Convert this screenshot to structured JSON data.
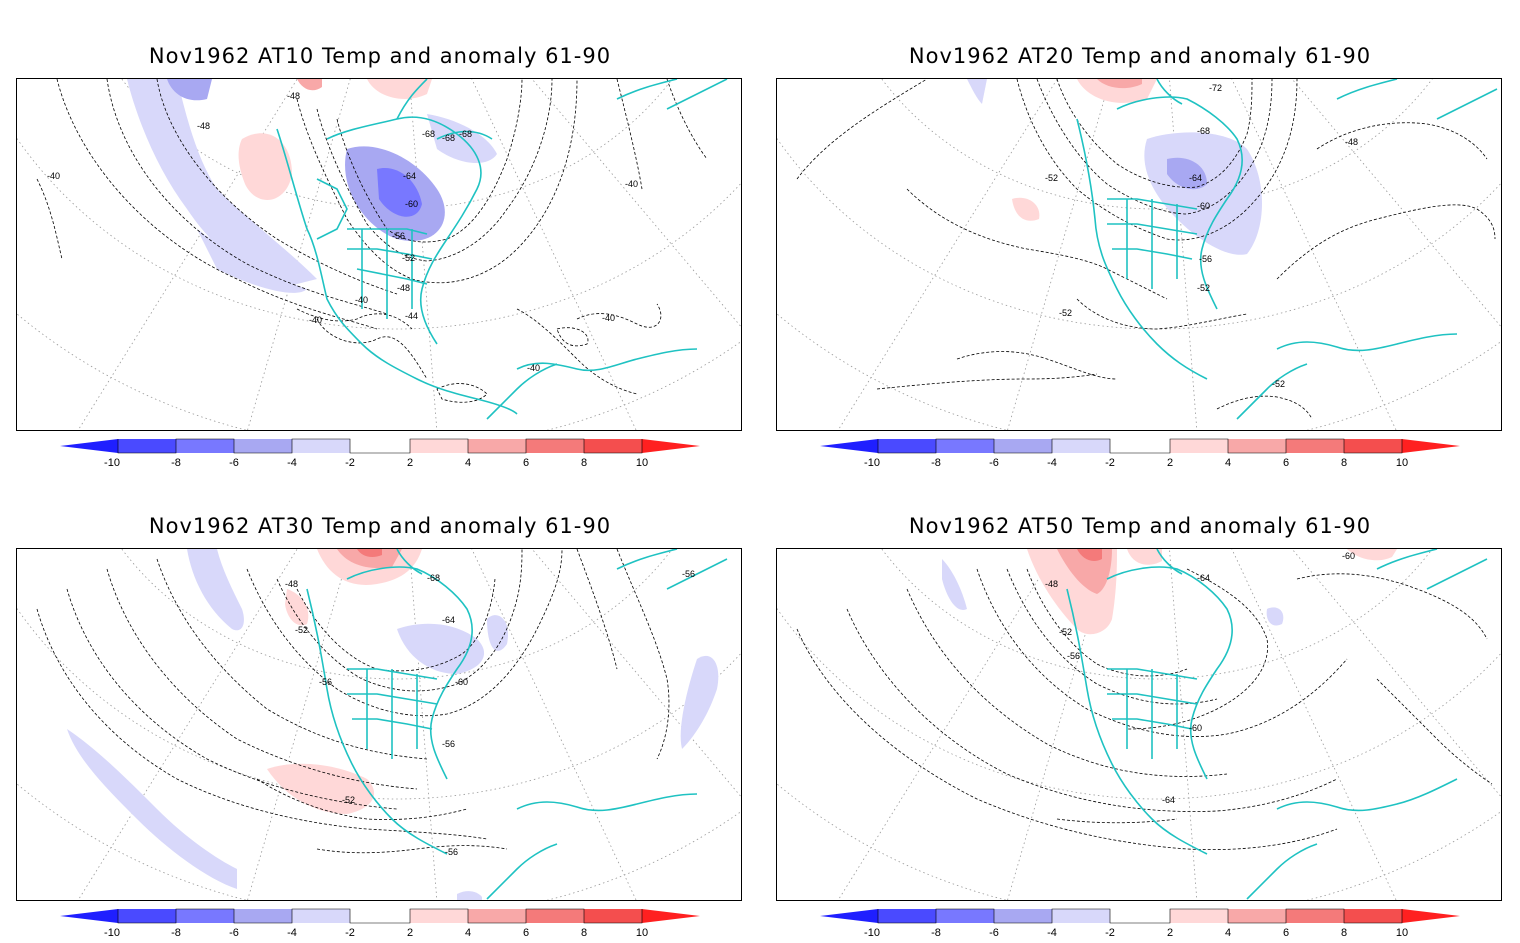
{
  "panels": [
    {
      "title": "Nov1962 AT10 Temp and anomaly 61-90",
      "contour_labels": [
        "-48",
        "-48",
        "-40",
        "-68",
        "-68",
        "-68",
        "-64",
        "-60",
        "-56",
        "-52",
        "-48",
        "-40",
        "-40",
        "-44",
        "-40",
        "-40",
        "-40"
      ]
    },
    {
      "title": "Nov1962 AT20 Temp and anomaly 61-90",
      "contour_labels": [
        "-72",
        "-68",
        "-48",
        "-52",
        "-64",
        "-60",
        "-56",
        "-52",
        "-52",
        "-52"
      ]
    },
    {
      "title": "Nov1962 AT30 Temp and anomaly 61-90",
      "contour_labels": [
        "-48",
        "-68",
        "-56",
        "-52",
        "-64",
        "-56",
        "-60",
        "-56",
        "-52",
        "-56"
      ]
    },
    {
      "title": "Nov1962 AT50 Temp and anomaly 61-90",
      "contour_labels": [
        "-48",
        "-64",
        "-60",
        "-52",
        "-56",
        "-60",
        "-64"
      ]
    }
  ],
  "colorbar": {
    "tick_labels": [
      "-10",
      "-8",
      "-6",
      "-4",
      "-2",
      "2",
      "4",
      "6",
      "8",
      "10"
    ],
    "colors": [
      "#1f1fff",
      "#4a4aff",
      "#7878ff",
      "#a8a8f2",
      "#d8d8fa",
      "#ffffff",
      "#ffd8d8",
      "#f8a8a8",
      "#f47a7a",
      "#f44e4e",
      "#ff2020"
    ]
  },
  "colors": {
    "coastline": "#1fc2c2",
    "contour": "#000000",
    "graticule": "#999999"
  }
}
